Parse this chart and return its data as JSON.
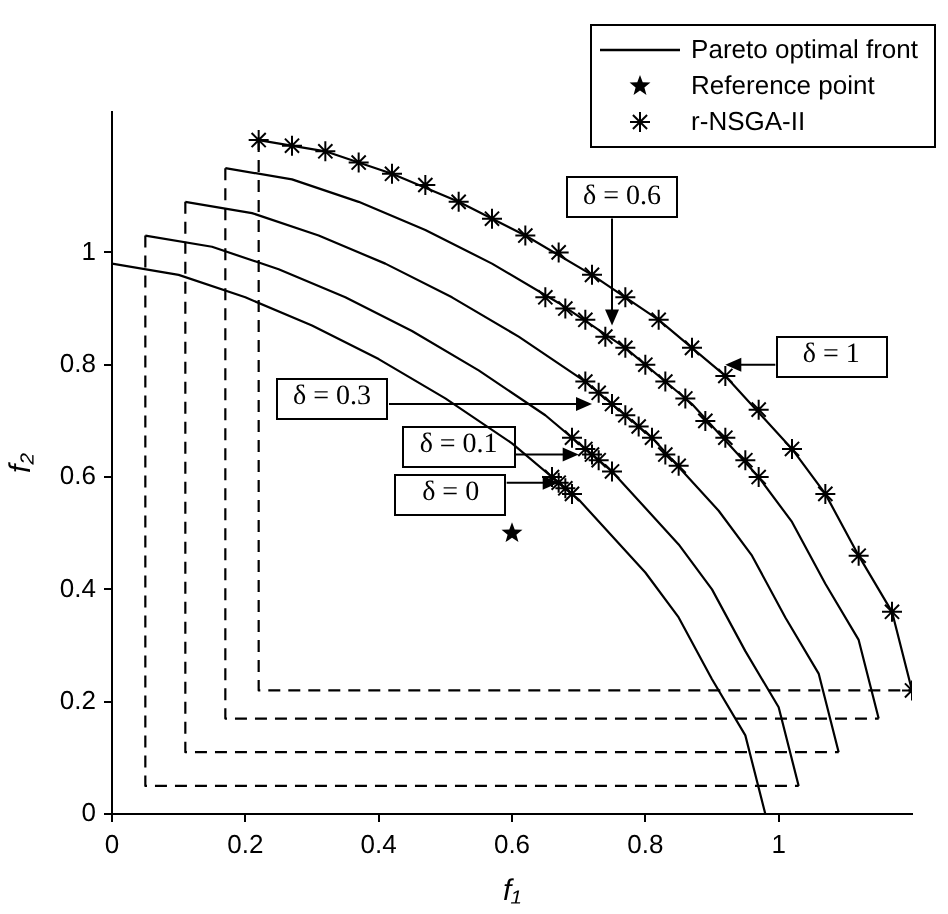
{
  "chart_data": {
    "type": "line",
    "xlabel": "f₁",
    "ylabel": "f₂",
    "xlim": [
      0,
      1.2
    ],
    "ylim": [
      0,
      1.25
    ],
    "xticks": [
      0,
      0.2,
      0.4,
      0.6,
      0.8,
      1
    ],
    "yticks": [
      0,
      0.2,
      0.4,
      0.6,
      0.8,
      1
    ],
    "legend": "top right",
    "series": [
      {
        "name": "Pareto optimal front",
        "type": "line",
        "color": "#000000",
        "line_style": "solid",
        "x": [
          0,
          0.1,
          0.2,
          0.3,
          0.4,
          0.5,
          0.6,
          0.7,
          0.8,
          0.85,
          0.9,
          0.95,
          0.98
        ],
        "values": [
          0.98,
          0.96,
          0.92,
          0.87,
          0.81,
          0.74,
          0.66,
          0.56,
          0.43,
          0.35,
          0.24,
          0.14,
          0
        ]
      },
      {
        "type": "line",
        "color": "#000000",
        "line_style": "solid",
        "x": [
          0.05,
          0.15,
          0.25,
          0.35,
          0.45,
          0.55,
          0.65,
          0.75,
          0.85,
          0.9,
          0.95,
          1,
          1.03
        ],
        "values": [
          1.03,
          1.01,
          0.97,
          0.92,
          0.86,
          0.79,
          0.71,
          0.61,
          0.48,
          0.4,
          0.29,
          0.19,
          0.05
        ]
      },
      {
        "type": "line",
        "color": "#000000",
        "line_style": "solid",
        "x": [
          0.11,
          0.21,
          0.31,
          0.41,
          0.51,
          0.61,
          0.71,
          0.81,
          0.91,
          0.96,
          1.01,
          1.06,
          1.09
        ],
        "values": [
          1.09,
          1.07,
          1.03,
          0.98,
          0.92,
          0.85,
          0.77,
          0.67,
          0.54,
          0.46,
          0.35,
          0.25,
          0.11
        ]
      },
      {
        "type": "line",
        "color": "#000000",
        "line_style": "solid",
        "x": [
          0.17,
          0.27,
          0.37,
          0.47,
          0.57,
          0.67,
          0.77,
          0.87,
          0.97,
          1.02,
          1.07,
          1.12,
          1.15
        ],
        "values": [
          1.15,
          1.13,
          1.09,
          1.04,
          0.98,
          0.91,
          0.83,
          0.73,
          0.6,
          0.52,
          0.41,
          0.31,
          0.17
        ]
      },
      {
        "type": "line",
        "color": "#000000",
        "line_style": "solid",
        "x": [
          0.22,
          0.32,
          0.42,
          0.52,
          0.62,
          0.72,
          0.82,
          0.92,
          1.02,
          1.07,
          1.12,
          1.17,
          1.2
        ],
        "values": [
          1.2,
          1.18,
          1.14,
          1.09,
          1.03,
          0.96,
          0.88,
          0.78,
          0.65,
          0.57,
          0.46,
          0.36,
          0.22
        ]
      },
      {
        "type": "line",
        "color": "#000000",
        "line_style": "dashed",
        "x": [
          0.05,
          0.05,
          1.03
        ],
        "values": [
          1.03,
          0.05,
          0.05
        ]
      },
      {
        "type": "line",
        "color": "#000000",
        "line_style": "dashed",
        "x": [
          0.11,
          0.11,
          1.09
        ],
        "values": [
          1.09,
          0.11,
          0.11
        ]
      },
      {
        "type": "line",
        "color": "#000000",
        "line_style": "dashed",
        "x": [
          0.17,
          0.17,
          1.15
        ],
        "values": [
          1.15,
          0.17,
          0.17
        ]
      },
      {
        "type": "line",
        "color": "#000000",
        "line_style": "dashed",
        "x": [
          0.22,
          0.22,
          1.2
        ],
        "values": [
          1.2,
          0.22,
          0.22
        ]
      },
      {
        "name": "Reference point",
        "type": "scatter",
        "color": "#000000",
        "marker": "star",
        "x": [
          0.6
        ],
        "values": [
          0.5
        ]
      },
      {
        "name": "r-NSGA-II",
        "type": "scatter",
        "color": "#000000",
        "marker": "cross",
        "x": [
          0.66,
          0.67,
          0.68,
          0.69,
          0.69,
          0.71,
          0.72,
          0.73,
          0.75,
          0.71,
          0.73,
          0.75,
          0.77,
          0.79,
          0.81,
          0.83,
          0.85,
          0.65,
          0.68,
          0.71,
          0.74,
          0.77,
          0.8,
          0.83,
          0.86,
          0.89,
          0.92,
          0.95,
          0.97,
          0.22,
          0.27,
          0.32,
          0.37,
          0.42,
          0.47,
          0.52,
          0.57,
          0.62,
          0.67,
          0.72,
          0.77,
          0.82,
          0.87,
          0.92,
          0.97,
          1.02,
          1.07,
          1.12,
          1.17,
          1.2
        ],
        "values": [
          0.6,
          0.59,
          0.58,
          0.57,
          0.67,
          0.65,
          0.64,
          0.63,
          0.61,
          0.77,
          0.75,
          0.73,
          0.71,
          0.69,
          0.67,
          0.64,
          0.62,
          0.92,
          0.9,
          0.88,
          0.85,
          0.83,
          0.8,
          0.77,
          0.74,
          0.7,
          0.67,
          0.63,
          0.6,
          1.2,
          1.19,
          1.18,
          1.16,
          1.14,
          1.12,
          1.09,
          1.06,
          1.03,
          1,
          0.96,
          0.92,
          0.88,
          0.83,
          0.78,
          0.72,
          0.65,
          0.57,
          0.46,
          0.36,
          0.22
        ]
      }
    ],
    "annotations": [
      {
        "text": "δ = 0",
        "x": 0.67,
        "y": 0.59
      },
      {
        "text": "δ = 0.1",
        "x": 0.7,
        "y": 0.64
      },
      {
        "text": "δ = 0.3",
        "x": 0.72,
        "y": 0.73
      },
      {
        "text": "δ = 0.6",
        "x": 0.75,
        "y": 0.87
      },
      {
        "text": "δ = 1",
        "x": 0.92,
        "y": 0.8
      }
    ]
  }
}
